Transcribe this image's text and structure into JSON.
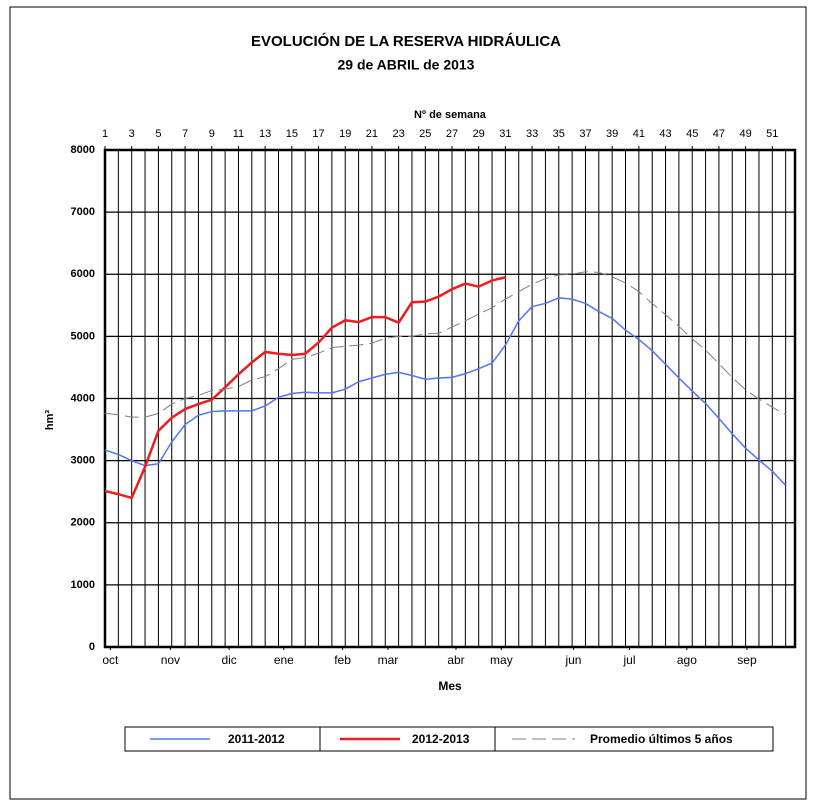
{
  "chart_data": {
    "type": "line",
    "title": "EVOLUCIÓN DE LA RESERVA HIDRÁULICA",
    "subtitle": "29 de ABRIL de 2013",
    "x_top_label": "Nº de semana",
    "x_label": "Mes",
    "y_label": "hm³",
    "x": [
      1,
      2,
      3,
      4,
      5,
      6,
      7,
      8,
      9,
      10,
      11,
      12,
      13,
      14,
      15,
      16,
      17,
      18,
      19,
      20,
      21,
      22,
      23,
      24,
      25,
      26,
      27,
      28,
      29,
      30,
      31,
      32,
      33,
      34,
      35,
      36,
      37,
      38,
      39,
      40,
      41,
      42,
      43,
      44,
      45,
      46,
      47,
      48,
      49,
      50,
      51,
      52
    ],
    "xlim": [
      1,
      52.7
    ],
    "xticks": [
      1,
      3,
      5,
      7,
      9,
      11,
      13,
      15,
      17,
      19,
      21,
      23,
      25,
      27,
      29,
      31,
      33,
      35,
      37,
      39,
      41,
      43,
      45,
      47,
      49,
      51
    ],
    "month_ticks": [
      {
        "value": 1.4,
        "label": "oct"
      },
      {
        "value": 5.9,
        "label": "nov"
      },
      {
        "value": 10.3,
        "label": "dic"
      },
      {
        "value": 14.4,
        "label": "ene"
      },
      {
        "value": 18.8,
        "label": "feb"
      },
      {
        "value": 22.2,
        "label": "mar"
      },
      {
        "value": 27.3,
        "label": "abr"
      },
      {
        "value": 30.7,
        "label": "may"
      },
      {
        "value": 36.1,
        "label": "jun"
      },
      {
        "value": 40.3,
        "label": "jul"
      },
      {
        "value": 44.6,
        "label": "ago"
      },
      {
        "value": 49.1,
        "label": "sep"
      }
    ],
    "ylim": [
      0,
      8000
    ],
    "yticks": [
      0,
      1000,
      2000,
      3000,
      4000,
      5000,
      6000,
      7000,
      8000
    ],
    "grid": true,
    "legend": "bottom",
    "series": [
      {
        "name": "2011-2012",
        "color": "#4f76f6",
        "dash": false,
        "width": 1.5,
        "values": [
          3170,
          3100,
          3000,
          2920,
          2950,
          3300,
          3580,
          3730,
          3790,
          3800,
          3800,
          3800,
          3880,
          4020,
          4080,
          4100,
          4090,
          4090,
          4150,
          4270,
          4330,
          4390,
          4420,
          4370,
          4310,
          4330,
          4340,
          4400,
          4480,
          4570,
          4860,
          5250,
          5480,
          5530,
          5620,
          5600,
          5530,
          5400,
          5290,
          5100,
          4950,
          4770,
          4550,
          4330,
          4120,
          3920,
          3680,
          3430,
          3200,
          3010,
          2830,
          2600
        ]
      },
      {
        "name": "2012-2013",
        "color": "#ee1c1c",
        "dash": false,
        "width": 2.5,
        "values": [
          2510,
          2460,
          2400,
          2900,
          3480,
          3690,
          3830,
          3910,
          3980,
          4180,
          4390,
          4580,
          4750,
          4720,
          4700,
          4720,
          4900,
          5140,
          5260,
          5230,
          5310,
          5310,
          5220,
          5550,
          5560,
          5640,
          5760,
          5850,
          5800,
          5900,
          5950,
          null,
          null,
          null,
          null,
          null,
          null,
          null,
          null,
          null,
          null,
          null,
          null,
          null,
          null,
          null,
          null,
          null,
          null,
          null,
          null,
          null
        ]
      },
      {
        "name": "Promedio últimos 5 años",
        "color": "#7f7f7f",
        "dash": true,
        "width": 1,
        "values": [
          3760,
          3740,
          3700,
          3700,
          3760,
          3910,
          4000,
          4050,
          4130,
          4150,
          4190,
          4300,
          4350,
          4480,
          4630,
          4660,
          4730,
          4820,
          4840,
          4860,
          4890,
          4970,
          5000,
          5000,
          5040,
          5050,
          5150,
          5250,
          5360,
          5460,
          5600,
          5720,
          5840,
          5930,
          5990,
          6000,
          6040,
          6030,
          5960,
          5860,
          5720,
          5530,
          5350,
          5160,
          4960,
          4780,
          4560,
          4340,
          4140,
          3990,
          3860,
          3740
        ]
      }
    ]
  }
}
